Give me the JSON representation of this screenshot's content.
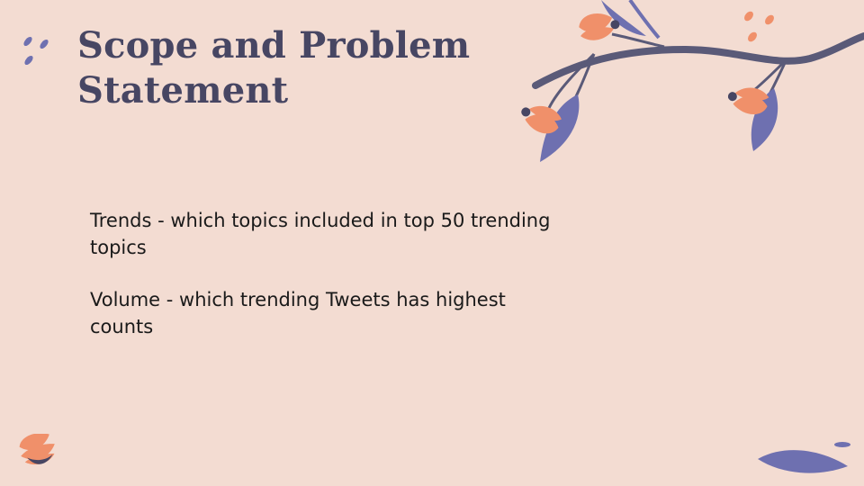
{
  "slide": {
    "title": "Scope and Problem Statement",
    "bullets": [
      "Trends - which topics included in top 50 trending topics",
      "Volume - which trending Tweets has highest counts"
    ]
  },
  "colors": {
    "background": "#f3dcd2",
    "title": "#474663",
    "text": "#1a1a1a",
    "leaf": "#6e70b0",
    "branch": "#5a5a78",
    "petal": "#f0906a"
  },
  "decorations": [
    "flower-branch",
    "dots",
    "flower",
    "leaf"
  ]
}
